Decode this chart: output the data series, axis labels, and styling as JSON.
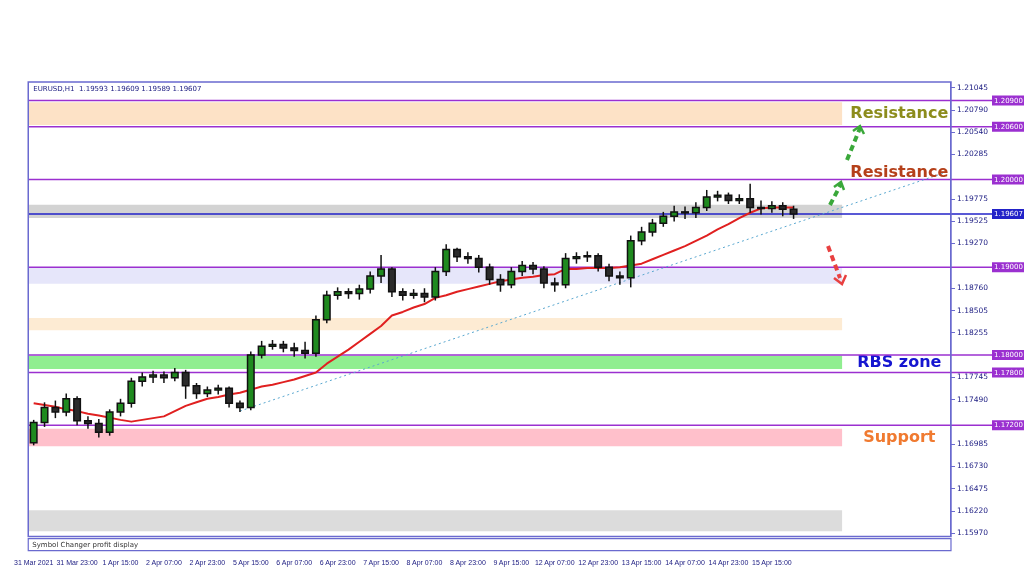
{
  "chart_data": {
    "type": "candlestick",
    "title": "EURUSD,H1  1.19593 1.19609 1.19589 1.19607",
    "categories": [
      "31 Mar 2021",
      null,
      null,
      null,
      "31 Mar 23:00",
      null,
      null,
      null,
      "1 Apr 15:00",
      null,
      null,
      null,
      "2 Apr 07:00",
      null,
      null,
      null,
      "2 Apr 23:00",
      null,
      null,
      null,
      "5 Apr 15:00",
      null,
      null,
      null,
      "6 Apr 07:00",
      null,
      null,
      null,
      "6 Apr 23:00",
      null,
      null,
      null,
      "7 Apr 15:00",
      null,
      null,
      null,
      "8 Apr 07:00",
      null,
      null,
      null,
      "8 Apr 23:00",
      null,
      null,
      null,
      "9 Apr 15:00",
      null,
      null,
      null,
      "12 Apr 07:00",
      null,
      null,
      null,
      "12 Apr 23:00",
      null,
      null,
      null,
      "13 Apr 15:00",
      null,
      null,
      null,
      "14 Apr 07:00",
      null,
      null,
      null,
      "14 Apr 23:00",
      null,
      null,
      null,
      "15 Apr 15:00",
      null,
      null,
      null,
      null,
      null,
      null,
      null,
      null,
      null,
      null,
      null,
      null,
      null,
      null,
      null,
      null
    ],
    "ohlc": [
      [
        1.17,
        1.1726,
        1.1697,
        1.1723
      ],
      [
        1.1723,
        1.1746,
        1.1718,
        1.174
      ],
      [
        1.174,
        1.1748,
        1.1728,
        1.1735
      ],
      [
        1.1735,
        1.1756,
        1.173,
        1.175
      ],
      [
        1.175,
        1.1753,
        1.172,
        1.1725
      ],
      [
        1.1725,
        1.173,
        1.1716,
        1.1722
      ],
      [
        1.1722,
        1.1727,
        1.1706,
        1.1712
      ],
      [
        1.1712,
        1.1738,
        1.1708,
        1.1735
      ],
      [
        1.1735,
        1.175,
        1.173,
        1.1745
      ],
      [
        1.1745,
        1.1774,
        1.174,
        1.177
      ],
      [
        1.177,
        1.178,
        1.1764,
        1.1775
      ],
      [
        1.1775,
        1.1782,
        1.1768,
        1.1777
      ],
      [
        1.1777,
        1.1781,
        1.1768,
        1.1774
      ],
      [
        1.1774,
        1.1785,
        1.177,
        1.178
      ],
      [
        1.178,
        1.1783,
        1.175,
        1.1765
      ],
      [
        1.1765,
        1.1768,
        1.175,
        1.1756
      ],
      [
        1.1756,
        1.1764,
        1.1752,
        1.176
      ],
      [
        1.176,
        1.1766,
        1.1755,
        1.1762
      ],
      [
        1.1762,
        1.1764,
        1.174,
        1.1745
      ],
      [
        1.1745,
        1.1748,
        1.1735,
        1.174
      ],
      [
        1.174,
        1.1804,
        1.1737,
        1.18
      ],
      [
        1.18,
        1.1816,
        1.1796,
        1.181
      ],
      [
        1.181,
        1.1817,
        1.1806,
        1.1812
      ],
      [
        1.1812,
        1.1816,
        1.1803,
        1.1808
      ],
      [
        1.1808,
        1.1814,
        1.1798,
        1.1805
      ],
      [
        1.1805,
        1.1815,
        1.1796,
        1.1802
      ],
      [
        1.1802,
        1.1845,
        1.1798,
        1.184
      ],
      [
        1.184,
        1.1873,
        1.1836,
        1.1868
      ],
      [
        1.1868,
        1.1877,
        1.1863,
        1.1872
      ],
      [
        1.1872,
        1.1876,
        1.1864,
        1.187
      ],
      [
        1.187,
        1.188,
        1.1863,
        1.1875
      ],
      [
        1.1875,
        1.1895,
        1.187,
        1.189
      ],
      [
        1.189,
        1.1914,
        1.1882,
        1.1898
      ],
      [
        1.1898,
        1.19,
        1.1866,
        1.1872
      ],
      [
        1.1872,
        1.1876,
        1.1862,
        1.1868
      ],
      [
        1.1868,
        1.1875,
        1.1864,
        1.187
      ],
      [
        1.187,
        1.1876,
        1.186,
        1.1866
      ],
      [
        1.1866,
        1.19,
        1.1862,
        1.1895
      ],
      [
        1.1895,
        1.1926,
        1.189,
        1.192
      ],
      [
        1.192,
        1.1922,
        1.1906,
        1.1912
      ],
      [
        1.1912,
        1.1917,
        1.1904,
        1.191
      ],
      [
        1.191,
        1.1914,
        1.1894,
        1.19
      ],
      [
        1.19,
        1.1904,
        1.188,
        1.1886
      ],
      [
        1.1886,
        1.1892,
        1.1872,
        1.188
      ],
      [
        1.188,
        1.19,
        1.1876,
        1.1895
      ],
      [
        1.1895,
        1.1907,
        1.189,
        1.1902
      ],
      [
        1.1902,
        1.1906,
        1.1892,
        1.1898
      ],
      [
        1.1898,
        1.1901,
        1.1876,
        1.1882
      ],
      [
        1.1882,
        1.1888,
        1.1872,
        1.188
      ],
      [
        1.188,
        1.1916,
        1.1876,
        1.191
      ],
      [
        1.191,
        1.1917,
        1.1904,
        1.1912
      ],
      [
        1.1912,
        1.1918,
        1.1906,
        1.1913
      ],
      [
        1.1913,
        1.1916,
        1.1895,
        1.19
      ],
      [
        1.19,
        1.1904,
        1.1884,
        1.189
      ],
      [
        1.189,
        1.1895,
        1.188,
        1.1888
      ],
      [
        1.1888,
        1.1936,
        1.1877,
        1.193
      ],
      [
        1.193,
        1.1946,
        1.1925,
        1.194
      ],
      [
        1.194,
        1.1955,
        1.1935,
        1.195
      ],
      [
        1.195,
        1.1963,
        1.1946,
        1.1958
      ],
      [
        1.1958,
        1.197,
        1.1952,
        1.1963
      ],
      [
        1.1963,
        1.1969,
        1.1955,
        1.1962
      ],
      [
        1.1962,
        1.1974,
        1.1956,
        1.1968
      ],
      [
        1.1968,
        1.1988,
        1.1964,
        1.198
      ],
      [
        1.198,
        1.1987,
        1.1975,
        1.1982
      ],
      [
        1.1982,
        1.1985,
        1.1972,
        1.1976
      ],
      [
        1.1976,
        1.1983,
        1.1972,
        1.1978
      ],
      [
        1.1978,
        1.1995,
        1.1962,
        1.1968
      ],
      [
        1.1968,
        1.1976,
        1.196,
        1.1967
      ],
      [
        1.1967,
        1.1975,
        1.1962,
        1.197
      ],
      [
        1.197,
        1.1974,
        1.1958,
        1.1966
      ],
      [
        1.1966,
        1.197,
        1.1955,
        1.19607
      ],
      null,
      null,
      null,
      null,
      null,
      null,
      null,
      null,
      null,
      null,
      null,
      null,
      null,
      null
    ],
    "colors": [
      "#1f8a1f",
      "#1f8a1f",
      "#2b2b2b",
      "#1f8a1f",
      "#2b2b2b",
      "#2b2b2b",
      "#2b2b2b",
      "#1f8a1f",
      "#1f8a1f",
      "#1f8a1f",
      "#1f8a1f",
      "#1f8a1f",
      "#2b2b2b",
      "#1f8a1f",
      "#2b2b2b",
      "#2b2b2b",
      "#1f8a1f",
      "#1f8a1f",
      "#2b2b2b",
      "#2b2b2b",
      "#1f8a1f",
      "#1f8a1f",
      "#1f8a1f",
      "#2b2b2b",
      "#2b2b2b",
      "#2b2b2b",
      "#1f8a1f",
      "#1f8a1f",
      "#1f8a1f",
      "#2b2b2b",
      "#1f8a1f",
      "#1f8a1f",
      "#1f8a1f",
      "#2b2b2b",
      "#2b2b2b",
      "#1f8a1f",
      "#2b2b2b",
      "#1f8a1f",
      "#1f8a1f",
      "#2b2b2b",
      "#2b2b2b",
      "#2b2b2b",
      "#2b2b2b",
      "#2b2b2b",
      "#1f8a1f",
      "#1f8a1f",
      "#2b2b2b",
      "#2b2b2b",
      "#2b2b2b",
      "#1f8a1f",
      "#1f8a1f",
      "#1f8a1f",
      "#2b2b2b",
      "#2b2b2b",
      "#2b2b2b",
      "#1f8a1f",
      "#1f8a1f",
      "#1f8a1f",
      "#1f8a1f",
      "#1f8a1f",
      "#2b2b2b",
      "#1f8a1f",
      "#1f8a1f",
      "#1f8a1f",
      "#2b2b2b",
      "#1f8a1f",
      "#2b2b2b",
      "#2b2b2b",
      "#1f8a1f",
      "#2b2b2b",
      "#2b2b2b",
      null,
      null,
      null,
      null,
      null,
      null,
      null,
      null,
      null,
      null,
      null,
      null,
      null,
      null
    ],
    "series": [
      {
        "type": "line",
        "color": "#e02020",
        "values": [
          1.1745,
          1.1743,
          1.1741,
          1.1738,
          1.1736,
          1.1733,
          1.1731,
          null,
          1.1726,
          1.1724,
          1.1726,
          1.1728,
          1.173,
          1.1736,
          1.1742,
          1.1746,
          1.175,
          1.1752,
          1.1755,
          1.1757,
          null,
          1.1764,
          1.1766,
          1.1769,
          1.1772,
          1.1776,
          1.178,
          1.179,
          1.1798,
          1.1806,
          1.1815,
          1.1824,
          1.1833,
          1.1845,
          1.1849,
          1.1854,
          1.1858,
          1.1865,
          1.1868,
          1.1872,
          1.1875,
          1.1878,
          1.1881,
          1.1884,
          1.1886,
          1.1888,
          1.1889,
          1.1891,
          1.1892,
          1.1898,
          1.1898,
          1.1899,
          1.1899,
          1.1899,
          1.19,
          null,
          1.1904,
          1.1909,
          1.1914,
          1.1919,
          1.1924,
          1.193,
          1.1936,
          1.1943,
          1.1949,
          1.1956,
          1.1962,
          1.1967,
          1.1968,
          1.1968,
          1.1968,
          null,
          null,
          null,
          null,
          null,
          null,
          null,
          null,
          null,
          null,
          null,
          null,
          null,
          null
        ]
      },
      {
        "type": "line",
        "color": "#5aa8d0",
        "line_style": "dotted",
        "values": [
          null,
          null,
          null,
          null,
          null,
          null,
          null,
          null,
          null,
          null,
          null,
          null,
          null,
          null,
          null,
          null,
          null,
          null,
          null,
          1.1736,
          null,
          null,
          null,
          null,
          null,
          null,
          null,
          null,
          null,
          null,
          null,
          null,
          null,
          null,
          null,
          null,
          null,
          null,
          null,
          null,
          null,
          null,
          null,
          null,
          null,
          null,
          null,
          null,
          null,
          null,
          null,
          null,
          null,
          null,
          null,
          null,
          null,
          null,
          null,
          null,
          null,
          null,
          null,
          null,
          null,
          null,
          null,
          null,
          null,
          null,
          null,
          null,
          null,
          null,
          null,
          null,
          null,
          null,
          null,
          null,
          null,
          null,
          null,
          null,
          1.2008
        ]
      }
    ],
    "ylim": [
      1.1593,
      1.2111
    ],
    "yticks": [
      1.21045,
      {
        "value": 1.2079,
        "label": "1.20790"
      },
      {
        "value": 1.2054,
        "label": "1.20540"
      },
      1.20285,
      1.19775,
      1.19525,
      {
        "value": 1.1927,
        "label": "1.19270"
      },
      {
        "value": 1.1876,
        "label": "1.18760"
      },
      1.18505,
      1.18255,
      1.17745,
      {
        "value": 1.1749,
        "label": "1.17490"
      },
      1.16985,
      {
        "value": 1.1673,
        "label": "1.16730"
      },
      1.16475,
      {
        "value": 1.1622,
        "label": "1.16220"
      },
      {
        "value": 1.1597,
        "label": "1.15970"
      }
    ],
    "bands": [
      {
        "axis": "y",
        "from": 1.2062,
        "to": 1.2088,
        "color": "#fde2c6",
        "label": "Resistance"
      },
      {
        "axis": "y",
        "from": 1.1956,
        "to": 1.1971,
        "color": "#d3d3d3"
      },
      {
        "axis": "y",
        "from": 1.1881,
        "to": 1.1899,
        "color": "#e6e6fa"
      },
      {
        "axis": "y",
        "from": 1.1828,
        "to": 1.1842,
        "color": "#fdebd3"
      },
      {
        "axis": "y",
        "from": 1.1784,
        "to": 1.1799,
        "color": "#90ee90",
        "label": "RBS zone"
      },
      {
        "axis": "y",
        "from": 1.1696,
        "to": 1.1716,
        "color": "#ffc0cb",
        "label": "Support"
      },
      {
        "axis": "y",
        "from": 1.1599,
        "to": 1.1623,
        "color": "#dcdcdc"
      }
    ],
    "ref_lines": [
      {
        "axis": "y",
        "value": 1.209,
        "label": "1.20900",
        "color": "#9b30d0"
      },
      {
        "axis": "y",
        "value": 1.206,
        "label": "1.20600",
        "color": "#9b30d0"
      },
      {
        "axis": "y",
        "value": 1.2,
        "label": "1.20000",
        "color": "#9b30d0"
      },
      {
        "axis": "y",
        "value": 1.19607,
        "label": "1.19607",
        "color": "#2222c8"
      },
      {
        "axis": "y",
        "value": 1.19,
        "label": "1.19000",
        "color": "#9b30d0"
      },
      {
        "axis": "y",
        "value": 1.18,
        "label": "1.18000",
        "color": "#9b30d0"
      },
      {
        "axis": "y",
        "value": 1.178,
        "label": "1.17800",
        "color": "#9b30d0"
      },
      {
        "axis": "y",
        "value": 1.172,
        "label": "1.17200",
        "color": "#9b30d0"
      }
    ],
    "annotations": [
      "Resistance",
      "Symbol Changer profit display"
    ],
    "grid": false,
    "legend": false,
    "marker": "none"
  }
}
